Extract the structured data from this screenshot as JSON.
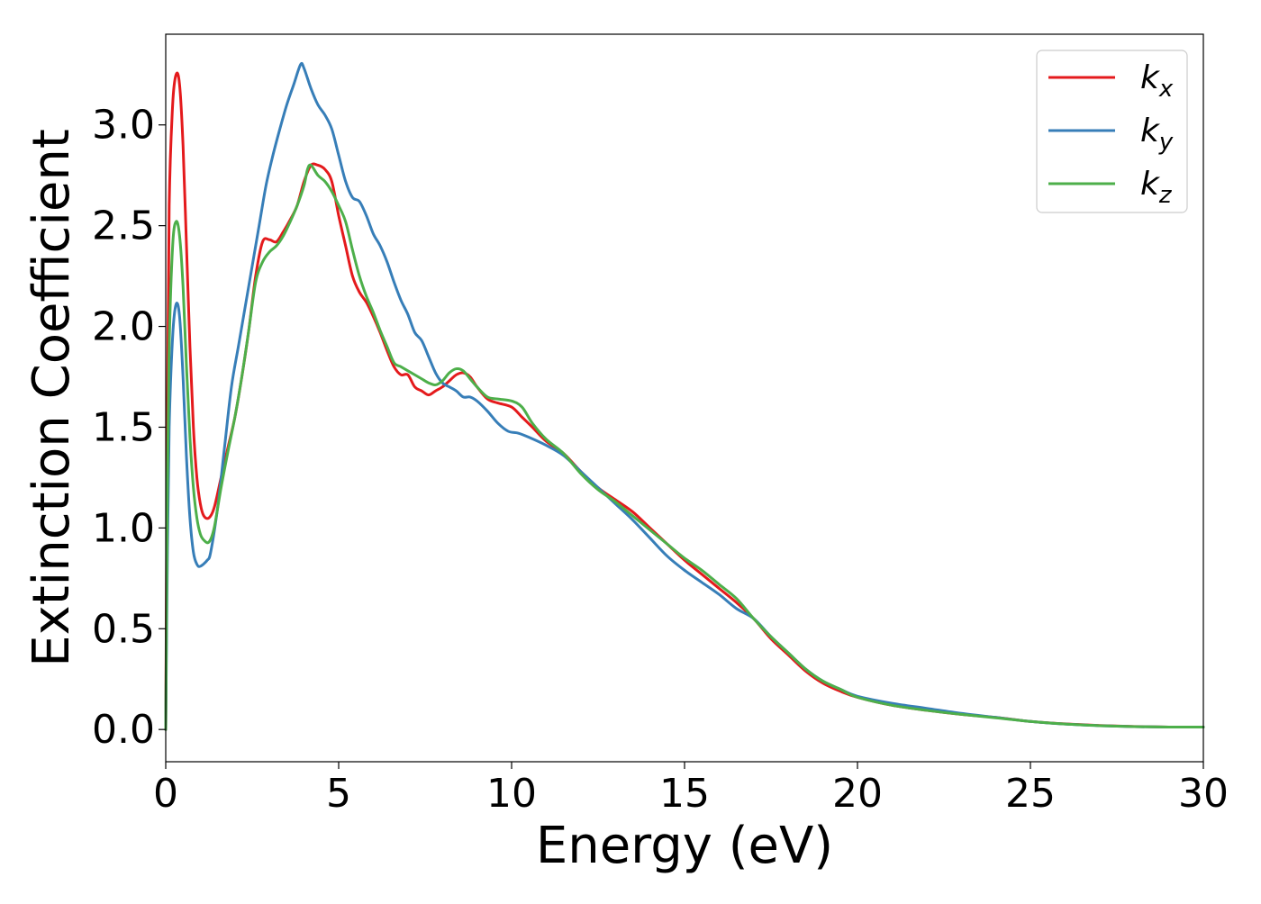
{
  "chart_data": {
    "type": "line",
    "title": "",
    "xlabel": "Energy (eV)",
    "ylabel": "Extinction Coefficient",
    "xlim": [
      0,
      30
    ],
    "ylim": [
      -0.16,
      3.45
    ],
    "xticks": [
      0,
      5,
      10,
      15,
      20,
      25,
      30
    ],
    "xtick_labels": [
      "0",
      "5",
      "10",
      "15",
      "20",
      "25",
      "30"
    ],
    "yticks": [
      0.0,
      0.5,
      1.0,
      1.5,
      2.0,
      2.5,
      3.0
    ],
    "ytick_labels": [
      "0.0",
      "0.5",
      "1.0",
      "1.5",
      "2.0",
      "2.5",
      "3.0"
    ],
    "grid": false,
    "legend_position": "top-right",
    "series": [
      {
        "name": "k_x",
        "label_base": "k",
        "label_sub": "x",
        "color": "#e41a1c",
        "points": [
          [
            0,
            0.0
          ],
          [
            0.05,
            1.6
          ],
          [
            0.1,
            2.6
          ],
          [
            0.2,
            3.1
          ],
          [
            0.3,
            3.25
          ],
          [
            0.4,
            3.2
          ],
          [
            0.5,
            2.9
          ],
          [
            0.6,
            2.4
          ],
          [
            0.7,
            1.9
          ],
          [
            0.8,
            1.5
          ],
          [
            0.9,
            1.25
          ],
          [
            1.0,
            1.12
          ],
          [
            1.1,
            1.06
          ],
          [
            1.25,
            1.05
          ],
          [
            1.4,
            1.1
          ],
          [
            1.6,
            1.25
          ],
          [
            1.8,
            1.4
          ],
          [
            2.0,
            1.55
          ],
          [
            2.2,
            1.75
          ],
          [
            2.4,
            1.98
          ],
          [
            2.6,
            2.25
          ],
          [
            2.8,
            2.42
          ],
          [
            3.0,
            2.43
          ],
          [
            3.2,
            2.42
          ],
          [
            3.4,
            2.47
          ],
          [
            3.6,
            2.53
          ],
          [
            3.8,
            2.6
          ],
          [
            4.0,
            2.72
          ],
          [
            4.2,
            2.8
          ],
          [
            4.4,
            2.8
          ],
          [
            4.6,
            2.78
          ],
          [
            4.8,
            2.72
          ],
          [
            5.0,
            2.55
          ],
          [
            5.2,
            2.4
          ],
          [
            5.4,
            2.25
          ],
          [
            5.6,
            2.17
          ],
          [
            5.8,
            2.12
          ],
          [
            6.0,
            2.05
          ],
          [
            6.2,
            1.97
          ],
          [
            6.4,
            1.88
          ],
          [
            6.6,
            1.8
          ],
          [
            6.8,
            1.76
          ],
          [
            7.0,
            1.76
          ],
          [
            7.2,
            1.7
          ],
          [
            7.4,
            1.68
          ],
          [
            7.6,
            1.66
          ],
          [
            7.8,
            1.68
          ],
          [
            8.0,
            1.7
          ],
          [
            8.2,
            1.73
          ],
          [
            8.4,
            1.76
          ],
          [
            8.6,
            1.77
          ],
          [
            8.8,
            1.75
          ],
          [
            9.0,
            1.7
          ],
          [
            9.3,
            1.64
          ],
          [
            9.6,
            1.62
          ],
          [
            10.0,
            1.6
          ],
          [
            10.3,
            1.55
          ],
          [
            10.6,
            1.5
          ],
          [
            11.0,
            1.43
          ],
          [
            11.5,
            1.37
          ],
          [
            12.0,
            1.28
          ],
          [
            12.5,
            1.2
          ],
          [
            13.0,
            1.14
          ],
          [
            13.5,
            1.08
          ],
          [
            14.0,
            1.0
          ],
          [
            14.5,
            0.92
          ],
          [
            15.0,
            0.84
          ],
          [
            15.5,
            0.77
          ],
          [
            16.0,
            0.7
          ],
          [
            16.5,
            0.63
          ],
          [
            17.0,
            0.55
          ],
          [
            17.5,
            0.45
          ],
          [
            18.0,
            0.37
          ],
          [
            18.5,
            0.29
          ],
          [
            19.0,
            0.23
          ],
          [
            19.5,
            0.19
          ],
          [
            20.0,
            0.16
          ],
          [
            21.0,
            0.12
          ],
          [
            22.0,
            0.095
          ],
          [
            23.0,
            0.075
          ],
          [
            24.0,
            0.06
          ],
          [
            25.0,
            0.04
          ],
          [
            26.0,
            0.028
          ],
          [
            27.0,
            0.02
          ],
          [
            28.0,
            0.015
          ],
          [
            29.0,
            0.012
          ],
          [
            30.0,
            0.012
          ]
        ]
      },
      {
        "name": "k_y",
        "label_base": "k",
        "label_sub": "y",
        "color": "#377eb8",
        "points": [
          [
            0,
            0.0
          ],
          [
            0.05,
            0.9
          ],
          [
            0.1,
            1.5
          ],
          [
            0.2,
            1.95
          ],
          [
            0.3,
            2.11
          ],
          [
            0.4,
            2.05
          ],
          [
            0.5,
            1.75
          ],
          [
            0.6,
            1.35
          ],
          [
            0.7,
            1.05
          ],
          [
            0.8,
            0.88
          ],
          [
            0.9,
            0.82
          ],
          [
            1.0,
            0.81
          ],
          [
            1.2,
            0.84
          ],
          [
            1.3,
            0.88
          ],
          [
            1.5,
            1.1
          ],
          [
            1.7,
            1.4
          ],
          [
            1.9,
            1.7
          ],
          [
            2.1,
            1.9
          ],
          [
            2.3,
            2.1
          ],
          [
            2.5,
            2.3
          ],
          [
            2.7,
            2.5
          ],
          [
            2.9,
            2.7
          ],
          [
            3.1,
            2.85
          ],
          [
            3.3,
            2.98
          ],
          [
            3.5,
            3.1
          ],
          [
            3.7,
            3.2
          ],
          [
            3.9,
            3.3
          ],
          [
            4.0,
            3.28
          ],
          [
            4.2,
            3.18
          ],
          [
            4.4,
            3.1
          ],
          [
            4.6,
            3.05
          ],
          [
            4.8,
            2.98
          ],
          [
            5.0,
            2.85
          ],
          [
            5.2,
            2.72
          ],
          [
            5.4,
            2.64
          ],
          [
            5.6,
            2.62
          ],
          [
            5.8,
            2.55
          ],
          [
            6.0,
            2.46
          ],
          [
            6.2,
            2.4
          ],
          [
            6.4,
            2.32
          ],
          [
            6.6,
            2.22
          ],
          [
            6.8,
            2.13
          ],
          [
            7.0,
            2.06
          ],
          [
            7.2,
            1.97
          ],
          [
            7.4,
            1.93
          ],
          [
            7.6,
            1.85
          ],
          [
            7.8,
            1.77
          ],
          [
            8.0,
            1.72
          ],
          [
            8.2,
            1.7
          ],
          [
            8.4,
            1.68
          ],
          [
            8.6,
            1.65
          ],
          [
            8.8,
            1.65
          ],
          [
            9.0,
            1.63
          ],
          [
            9.3,
            1.58
          ],
          [
            9.6,
            1.52
          ],
          [
            9.9,
            1.48
          ],
          [
            10.2,
            1.47
          ],
          [
            10.5,
            1.45
          ],
          [
            11.0,
            1.41
          ],
          [
            11.5,
            1.36
          ],
          [
            12.0,
            1.28
          ],
          [
            12.5,
            1.2
          ],
          [
            13.0,
            1.12
          ],
          [
            13.5,
            1.04
          ],
          [
            14.0,
            0.95
          ],
          [
            14.5,
            0.86
          ],
          [
            15.0,
            0.79
          ],
          [
            15.5,
            0.73
          ],
          [
            16.0,
            0.67
          ],
          [
            16.5,
            0.6
          ],
          [
            17.0,
            0.55
          ],
          [
            17.5,
            0.46
          ],
          [
            18.0,
            0.38
          ],
          [
            18.5,
            0.3
          ],
          [
            19.0,
            0.24
          ],
          [
            19.5,
            0.2
          ],
          [
            20.0,
            0.165
          ],
          [
            21.0,
            0.13
          ],
          [
            22.0,
            0.105
          ],
          [
            23.0,
            0.08
          ],
          [
            24.0,
            0.06
          ],
          [
            25.0,
            0.04
          ],
          [
            26.0,
            0.027
          ],
          [
            27.0,
            0.019
          ],
          [
            28.0,
            0.014
          ],
          [
            29.0,
            0.012
          ],
          [
            30.0,
            0.012
          ]
        ]
      },
      {
        "name": "k_z",
        "label_base": "k",
        "label_sub": "z",
        "color": "#4daf4a",
        "points": [
          [
            0,
            0.0
          ],
          [
            0.05,
            1.2
          ],
          [
            0.1,
            1.9
          ],
          [
            0.2,
            2.4
          ],
          [
            0.3,
            2.52
          ],
          [
            0.4,
            2.45
          ],
          [
            0.5,
            2.2
          ],
          [
            0.6,
            1.8
          ],
          [
            0.7,
            1.45
          ],
          [
            0.8,
            1.2
          ],
          [
            0.9,
            1.05
          ],
          [
            1.0,
            0.97
          ],
          [
            1.1,
            0.94
          ],
          [
            1.25,
            0.93
          ],
          [
            1.4,
            1.0
          ],
          [
            1.6,
            1.2
          ],
          [
            1.8,
            1.38
          ],
          [
            2.0,
            1.55
          ],
          [
            2.2,
            1.75
          ],
          [
            2.4,
            1.98
          ],
          [
            2.6,
            2.22
          ],
          [
            2.8,
            2.32
          ],
          [
            3.0,
            2.37
          ],
          [
            3.2,
            2.4
          ],
          [
            3.4,
            2.45
          ],
          [
            3.6,
            2.52
          ],
          [
            3.8,
            2.6
          ],
          [
            4.0,
            2.7
          ],
          [
            4.1,
            2.78
          ],
          [
            4.2,
            2.8
          ],
          [
            4.4,
            2.75
          ],
          [
            4.6,
            2.72
          ],
          [
            4.8,
            2.67
          ],
          [
            5.0,
            2.6
          ],
          [
            5.2,
            2.52
          ],
          [
            5.4,
            2.38
          ],
          [
            5.6,
            2.25
          ],
          [
            5.8,
            2.15
          ],
          [
            6.0,
            2.07
          ],
          [
            6.2,
            1.98
          ],
          [
            6.4,
            1.9
          ],
          [
            6.6,
            1.82
          ],
          [
            6.8,
            1.8
          ],
          [
            7.0,
            1.78
          ],
          [
            7.2,
            1.76
          ],
          [
            7.4,
            1.74
          ],
          [
            7.6,
            1.72
          ],
          [
            7.8,
            1.71
          ],
          [
            8.0,
            1.73
          ],
          [
            8.2,
            1.77
          ],
          [
            8.4,
            1.79
          ],
          [
            8.6,
            1.78
          ],
          [
            8.8,
            1.74
          ],
          [
            9.0,
            1.7
          ],
          [
            9.3,
            1.65
          ],
          [
            9.6,
            1.64
          ],
          [
            10.0,
            1.63
          ],
          [
            10.3,
            1.6
          ],
          [
            10.6,
            1.52
          ],
          [
            11.0,
            1.44
          ],
          [
            11.5,
            1.37
          ],
          [
            12.0,
            1.27
          ],
          [
            12.5,
            1.19
          ],
          [
            13.0,
            1.13
          ],
          [
            13.5,
            1.06
          ],
          [
            14.0,
            0.99
          ],
          [
            14.5,
            0.92
          ],
          [
            15.0,
            0.85
          ],
          [
            15.5,
            0.79
          ],
          [
            16.0,
            0.72
          ],
          [
            16.5,
            0.65
          ],
          [
            17.0,
            0.55
          ],
          [
            17.5,
            0.46
          ],
          [
            18.0,
            0.38
          ],
          [
            18.5,
            0.3
          ],
          [
            19.0,
            0.24
          ],
          [
            19.5,
            0.2
          ],
          [
            20.0,
            0.16
          ],
          [
            21.0,
            0.12
          ],
          [
            22.0,
            0.095
          ],
          [
            23.0,
            0.075
          ],
          [
            24.0,
            0.058
          ],
          [
            25.0,
            0.04
          ],
          [
            26.0,
            0.027
          ],
          [
            27.0,
            0.019
          ],
          [
            28.0,
            0.014
          ],
          [
            29.0,
            0.012
          ],
          [
            30.0,
            0.012
          ]
        ]
      }
    ]
  }
}
